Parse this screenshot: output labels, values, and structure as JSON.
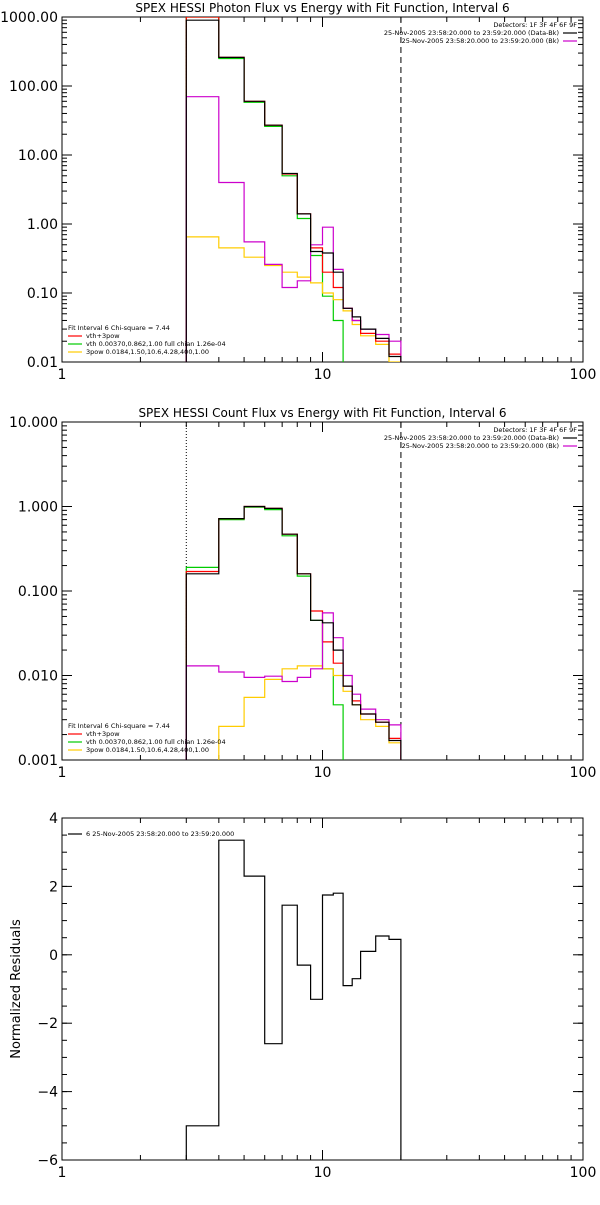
{
  "chart_data": [
    {
      "type": "line",
      "title": "SPEX HESSI Photon Flux vs Energy with Fit Function, Interval 6",
      "xlabel": "",
      "ylabel": "",
      "xscale": "log",
      "yscale": "log",
      "xlim": [
        1,
        100
      ],
      "ylim": [
        0.01,
        1000
      ],
      "x_ticks": [
        {
          "v": 1,
          "label": "1"
        },
        {
          "v": 10,
          "label": "10"
        },
        {
          "v": 100,
          "label": "100"
        }
      ],
      "y_ticks": [
        {
          "v": 1000,
          "label": "1000.00"
        },
        {
          "v": 100,
          "label": "100.00"
        },
        {
          "v": 10,
          "label": "10.00"
        },
        {
          "v": 1,
          "label": "1.00"
        },
        {
          "v": 0.1,
          "label": "0.10"
        },
        {
          "v": 0.01,
          "label": "0.01"
        }
      ],
      "vlines": [
        {
          "x": 3.0,
          "style": "dotted"
        },
        {
          "x": 20.0,
          "style": "dashed"
        }
      ],
      "info_right": [
        {
          "text": "Detectors: 1F 3F 4F 6F 9F",
          "color": "#000000",
          "swatch": false
        },
        {
          "text": "25-Nov-2005 23:58:20.000 to 23:59:20.000 (Data-Bk)",
          "color": "#000000",
          "swatch": true
        },
        {
          "text": "25-Nov-2005 23:58:20.000 to 23:59:20.000 (Bk)",
          "color": "#cc00cc",
          "swatch": true
        }
      ],
      "legend_left": [
        {
          "text": "Fit Interval 6    Chi-square = 7.44",
          "color": "#000000",
          "swatch": false
        },
        {
          "text": "vth+3pow",
          "color": "#ff0000",
          "swatch": true
        },
        {
          "text": "vth 0.00370,0.862,1.00   full chian 1.26e-04",
          "color": "#00cc00",
          "swatch": true
        },
        {
          "text": "3pow 0.0184,1.50,10.6,4.28,400,1.00",
          "color": "#ffcc00",
          "swatch": true
        }
      ],
      "edges": [
        3,
        4,
        5,
        6,
        7,
        8,
        9,
        10,
        11,
        12,
        13,
        14,
        16,
        18,
        20
      ],
      "series": [
        {
          "color": "#00cc00",
          "values": [
            1000,
            250,
            58,
            26,
            5.0,
            1.2,
            0.35,
            0.09,
            0.04,
            0.006,
            null,
            null,
            null,
            null
          ]
        },
        {
          "color": "#ffcc00",
          "values": [
            0.65,
            0.45,
            0.33,
            0.25,
            0.2,
            0.17,
            0.14,
            0.1,
            0.08,
            0.055,
            0.035,
            0.024,
            0.018,
            0.01
          ]
        },
        {
          "color": "#ff0000",
          "values": [
            1000,
            260,
            60,
            27,
            5.3,
            1.4,
            0.45,
            0.2,
            0.12,
            0.06,
            0.04,
            0.026,
            0.02,
            0.013
          ]
        },
        {
          "color": "#cc00cc",
          "values": [
            70,
            4,
            0.55,
            0.26,
            0.12,
            0.15,
            0.5,
            0.9,
            0.22,
            0.06,
            0.04,
            0.03,
            0.025,
            0.02
          ]
        },
        {
          "color": "#000000",
          "values": [
            900,
            260,
            60,
            27,
            5.4,
            1.4,
            0.4,
            0.38,
            0.2,
            0.06,
            0.045,
            0.03,
            0.022,
            0.012
          ]
        }
      ]
    },
    {
      "type": "line",
      "title": "SPEX HESSI Count Flux vs Energy with Fit Function, Interval 6",
      "xlabel": "",
      "ylabel": "",
      "xscale": "log",
      "yscale": "log",
      "xlim": [
        1,
        100
      ],
      "ylim": [
        0.001,
        10
      ],
      "x_ticks": [
        {
          "v": 1,
          "label": "1"
        },
        {
          "v": 10,
          "label": "10"
        },
        {
          "v": 100,
          "label": "100"
        }
      ],
      "y_ticks": [
        {
          "v": 10,
          "label": "10.000"
        },
        {
          "v": 1,
          "label": "1.000"
        },
        {
          "v": 0.1,
          "label": "0.100"
        },
        {
          "v": 0.01,
          "label": "0.010"
        },
        {
          "v": 0.001,
          "label": "0.001"
        }
      ],
      "vlines": [
        {
          "x": 3.0,
          "style": "dotted"
        },
        {
          "x": 20.0,
          "style": "dashed"
        }
      ],
      "info_right": [
        {
          "text": "Detectors: 1F 3F 4F 6F 9F",
          "color": "#000000",
          "swatch": false
        },
        {
          "text": "25-Nov-2005 23:58:20.000 to 23:59:20.000 (Data-Bk)",
          "color": "#000000",
          "swatch": true
        },
        {
          "text": "25-Nov-2005 23:58:20.000 to 23:59:20.000 (Bk)",
          "color": "#cc00cc",
          "swatch": true
        }
      ],
      "legend_left": [
        {
          "text": "Fit Interval 6    Chi-square = 7.44",
          "color": "#000000",
          "swatch": false
        },
        {
          "text": "vth+3pow",
          "color": "#ff0000",
          "swatch": true
        },
        {
          "text": "vth 0.00370,0.862,1.00   full chian 1.26e-04",
          "color": "#00cc00",
          "swatch": true
        },
        {
          "text": "3pow 0.0184,1.50,10.6,4.28,400,1.00",
          "color": "#ffcc00",
          "swatch": true
        }
      ],
      "edges": [
        3,
        4,
        5,
        6,
        7,
        8,
        9,
        10,
        11,
        12,
        13,
        14,
        16,
        18,
        20
      ],
      "series": [
        {
          "color": "#00cc00",
          "values": [
            0.19,
            0.7,
            0.98,
            0.92,
            0.45,
            0.15,
            0.045,
            0.012,
            0.0045,
            0.0009,
            null,
            null,
            null,
            null
          ]
        },
        {
          "color": "#ffcc00",
          "values": [
            0.0009,
            0.0025,
            0.0055,
            0.009,
            0.012,
            0.013,
            0.013,
            0.012,
            0.01,
            0.0065,
            0.0045,
            0.003,
            0.0025,
            0.0016
          ]
        },
        {
          "color": "#ff0000",
          "values": [
            0.17,
            0.72,
            1.0,
            0.95,
            0.47,
            0.16,
            0.058,
            0.025,
            0.014,
            0.0075,
            0.005,
            0.0035,
            0.0028,
            0.0018
          ]
        },
        {
          "color": "#cc00cc",
          "values": [
            0.013,
            0.011,
            0.0095,
            0.0098,
            0.0085,
            0.0095,
            0.012,
            0.055,
            0.028,
            0.01,
            0.006,
            0.004,
            0.003,
            0.0026
          ]
        },
        {
          "color": "#000000",
          "values": [
            0.16,
            0.72,
            1.0,
            0.95,
            0.47,
            0.16,
            0.045,
            0.042,
            0.02,
            0.0075,
            0.0045,
            0.0035,
            0.0028,
            0.0017
          ]
        }
      ]
    },
    {
      "type": "line",
      "title": "",
      "xlabel": "",
      "ylabel": "Normalized Residuals",
      "xscale": "log",
      "yscale": "linear",
      "xlim": [
        1,
        100
      ],
      "ylim": [
        -6,
        4
      ],
      "x_ticks": [
        {
          "v": 1,
          "label": "1"
        },
        {
          "v": 10,
          "label": "10"
        },
        {
          "v": 100,
          "label": "100"
        }
      ],
      "y_ticks": [
        {
          "v": 4,
          "label": "4"
        },
        {
          "v": 2,
          "label": "2"
        },
        {
          "v": 0,
          "label": "0"
        },
        {
          "v": -2,
          "label": "−2"
        },
        {
          "v": -4,
          "label": "−4"
        },
        {
          "v": -6,
          "label": "−6"
        }
      ],
      "vlines": [],
      "info_right": [],
      "legend_left": [
        {
          "text": "6  25-Nov-2005 23:58:20.000 to 23:59:20.000",
          "color": "#000000",
          "swatch": true
        }
      ],
      "edges": [
        3,
        4,
        5,
        6,
        7,
        8,
        9,
        10,
        11,
        12,
        13,
        14,
        16,
        18,
        20
      ],
      "series": [
        {
          "color": "#000000",
          "values": [
            -5.0,
            3.35,
            2.3,
            -2.6,
            1.45,
            -0.3,
            -1.3,
            1.75,
            1.8,
            -0.9,
            -0.7,
            0.1,
            0.55,
            0.45
          ]
        }
      ]
    }
  ]
}
